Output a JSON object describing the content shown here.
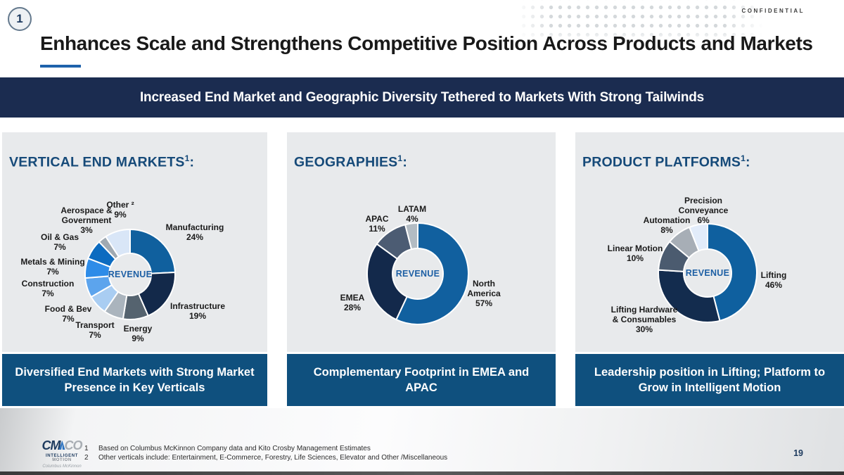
{
  "header": {
    "badge": "1",
    "confidential": "CONFIDENTIAL",
    "title": "Enhances Scale and Strengthens Competitive Position Across Products and Markets"
  },
  "banner": {
    "text": "Increased End Market and Geographic Diversity Tethered to Markets With Strong Tailwinds"
  },
  "panels": [
    {
      "heading": "VERTICAL END MARKETS",
      "sup": "1",
      "colon": ":",
      "caption": "Diversified End Markets with Strong Market Presence in Key Verticals"
    },
    {
      "heading": "GEOGRAPHIES",
      "sup": "1",
      "colon": ":",
      "caption": "Complementary Footprint in EMEA and APAC"
    },
    {
      "heading": "PRODUCT PLATFORMS",
      "sup": "1",
      "colon": ":",
      "caption": "Leadership position in Lifting; Platform to Grow in Intelligent Motion"
    }
  ],
  "chart_data": [
    {
      "type": "pie",
      "subtype": "donut",
      "title": "VERTICAL END MARKETS",
      "center_label": "REVENUE",
      "legend_position": "around",
      "segments": [
        {
          "label": "Manufacturing",
          "value": 24,
          "pct": "24%",
          "color": "#10609e",
          "label_lines": [
            "Manufacturing",
            "24%"
          ]
        },
        {
          "label": "Infrastructure",
          "value": 19,
          "pct": "19%",
          "color": "#13294a",
          "label_lines": [
            "Infrastructure",
            "19%"
          ]
        },
        {
          "label": "Energy",
          "value": 9,
          "pct": "9%",
          "color": "#55636f",
          "label_lines": [
            "Energy",
            "9%"
          ]
        },
        {
          "label": "Transport",
          "value": 7,
          "pct": "7%",
          "color": "#aab4bd",
          "label_lines": [
            "Transport",
            "7%"
          ]
        },
        {
          "label": "Food & Bev",
          "value": 7,
          "pct": "7%",
          "color": "#a9cdf2",
          "label_lines": [
            "Food & Bev",
            "7%"
          ]
        },
        {
          "label": "Construction",
          "value": 7,
          "pct": "7%",
          "color": "#5ca4ed",
          "label_lines": [
            "Construction",
            "7%"
          ]
        },
        {
          "label": "Metals & Mining",
          "value": 7,
          "pct": "7%",
          "color": "#2e8ce8",
          "label_lines": [
            "Metals & Mining",
            "7%"
          ]
        },
        {
          "label": "Oil & Gas",
          "value": 7,
          "pct": "7%",
          "color": "#0c6bc0",
          "label_lines": [
            "Oil & Gas",
            "7%"
          ]
        },
        {
          "label": "Aerospace & Government",
          "value": 3,
          "pct": "3%",
          "color": "#9fa9b2",
          "label_lines": [
            "Aerospace &",
            "Government",
            "3%"
          ]
        },
        {
          "label": "Other",
          "value": 9,
          "pct": "9%",
          "color": "#d9e6f7",
          "footnote_marker": "2",
          "label_lines": [
            "Other ²",
            "9%"
          ]
        }
      ]
    },
    {
      "type": "pie",
      "subtype": "donut",
      "title": "GEOGRAPHIES",
      "center_label": "REVENUE",
      "legend_position": "around",
      "segments": [
        {
          "label": "North America",
          "value": 57,
          "pct": "57%",
          "color": "#11609f",
          "label_lines": [
            "North",
            "America",
            "57%"
          ]
        },
        {
          "label": "EMEA",
          "value": 28,
          "pct": "28%",
          "color": "#13294b",
          "label_lines": [
            "EMEA",
            "28%"
          ]
        },
        {
          "label": "APAC",
          "value": 11,
          "pct": "11%",
          "color": "#4c5c73",
          "label_lines": [
            "APAC",
            "11%"
          ]
        },
        {
          "label": "LATAM",
          "value": 4,
          "pct": "4%",
          "color": "#b3bcc3",
          "label_lines": [
            "LATAM",
            "4%"
          ]
        }
      ]
    },
    {
      "type": "pie",
      "subtype": "donut",
      "title": "PRODUCT PLATFORMS",
      "center_label": "REVENUE",
      "legend_position": "around",
      "segments": [
        {
          "label": "Lifting",
          "value": 46,
          "pct": "46%",
          "color": "#0f609f",
          "label_lines": [
            "Lifting",
            "46%"
          ]
        },
        {
          "label": "Lifting Hardware & Consumables",
          "value": 30,
          "pct": "30%",
          "color": "#132c4e",
          "label_lines": [
            "Lifting Hardware",
            "& Consumables",
            "30%"
          ]
        },
        {
          "label": "Linear Motion",
          "value": 10,
          "pct": "10%",
          "color": "#4b5b6f",
          "label_lines": [
            "Linear Motion",
            "10%"
          ]
        },
        {
          "label": "Automation",
          "value": 8,
          "pct": "8%",
          "color": "#a7aeb6",
          "label_lines": [
            "Automation",
            "8%"
          ]
        },
        {
          "label": "Precision Conveyance",
          "value": 6,
          "pct": "6%",
          "color": "#e2ecfa",
          "label_lines": [
            "Precision",
            "Conveyance",
            "6%"
          ]
        }
      ]
    }
  ],
  "footnotes": [
    {
      "num": "1",
      "text": "Based on Columbus McKinnon Company data and Kito Crosby Management Estimates"
    },
    {
      "num": "2",
      "text": "Other verticals include: Entertainment, E-Commerce, Forestry, Life Sciences, Elevator and Other /Miscellaneous"
    }
  ],
  "logo": {
    "cm": "CM",
    "co": "CO",
    "line2_a": "INTELLIGENT",
    "line2_b": "MOTION",
    "line3": "Columbus McKinnon"
  },
  "page": {
    "number": "19"
  },
  "colors": {
    "banner_navy": "#1b2c50",
    "caption_blue": "#0f507e",
    "heading_blue": "#164a79",
    "accent_blue": "#1e62ab",
    "panel_bg": "#e8eaec"
  }
}
